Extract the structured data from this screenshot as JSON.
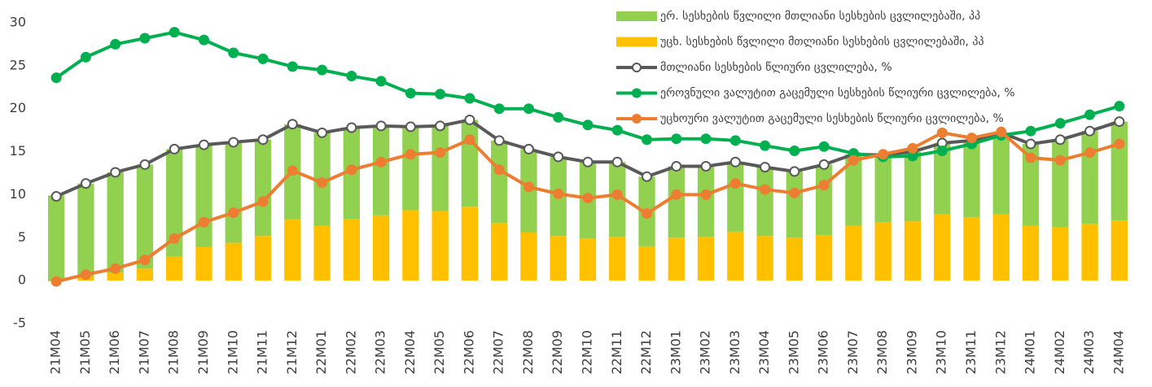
{
  "chart_data": {
    "type": "bar",
    "categories": [
      "21M04",
      "21M05",
      "21M06",
      "21M07",
      "21M08",
      "21M09",
      "21M10",
      "21M11",
      "21M12",
      "22M01",
      "22M02",
      "22M03",
      "22M04",
      "22M05",
      "22M06",
      "22M07",
      "22M08",
      "22M09",
      "22M10",
      "22M11",
      "22M12",
      "23M01",
      "23M02",
      "23M03",
      "23M04",
      "23M05",
      "23M06",
      "23M07",
      "23M08",
      "23M09",
      "23M10",
      "23M11",
      "23M12",
      "24M01",
      "24M02",
      "24M03",
      "24M04"
    ],
    "series": [
      {
        "name": "ერ. სესხების წვლილი მთლიანი სესხების ცვლილებაში, პპ",
        "type": "bar",
        "color": "#92d050",
        "values": [
          9.9,
          10.8,
          11.7,
          12.1,
          12.5,
          11.9,
          11.7,
          11.2,
          11.1,
          10.8,
          10.6,
          10.4,
          9.7,
          9.9,
          10.1,
          9.6,
          9.7,
          9.2,
          8.9,
          8.7,
          8.1,
          8.3,
          8.2,
          8.1,
          8.0,
          7.7,
          8.2,
          8.3,
          7.8,
          8.1,
          8.3,
          8.9,
          9.5,
          9.5,
          10.2,
          10.8,
          11.5
        ]
      },
      {
        "name": "უცხ. სესხების წვლილი მთლიანი სესხების ცვლილებაში, პპ",
        "type": "bar",
        "color": "#ffc000",
        "values": [
          -0.1,
          0.5,
          0.9,
          1.4,
          2.8,
          3.9,
          4.4,
          5.2,
          7.1,
          6.4,
          7.2,
          7.6,
          8.2,
          8.1,
          8.6,
          6.7,
          5.6,
          5.2,
          4.9,
          5.1,
          4.0,
          5.0,
          5.1,
          5.7,
          5.2,
          5.0,
          5.3,
          6.4,
          6.8,
          6.9,
          7.7,
          7.4,
          7.7,
          6.4,
          6.2,
          6.6,
          7.0
        ]
      },
      {
        "name": "მთლიანი სესხების წლიური ცვლილება, %",
        "type": "line",
        "color": "#595959",
        "marker_face": "#ffffff",
        "values": [
          9.8,
          11.3,
          12.6,
          13.5,
          15.3,
          15.8,
          16.1,
          16.4,
          18.2,
          17.2,
          17.8,
          18.0,
          17.9,
          18.0,
          18.7,
          16.3,
          15.3,
          14.4,
          13.8,
          13.8,
          12.1,
          13.3,
          13.3,
          13.8,
          13.2,
          12.7,
          13.5,
          14.7,
          14.6,
          15.0,
          16.0,
          16.3,
          17.2,
          15.9,
          16.4,
          17.4,
          18.5
        ]
      },
      {
        "name": "ეროვნული ვალუტით გაცემული სესხების წლიური ცვლილება, %",
        "type": "line",
        "color": "#00b050",
        "marker_face": "#00b050",
        "values": [
          23.6,
          26.0,
          27.5,
          28.2,
          28.9,
          28.0,
          26.5,
          25.8,
          24.9,
          24.5,
          23.8,
          23.2,
          21.8,
          21.7,
          21.2,
          20.0,
          20.0,
          19.0,
          18.1,
          17.5,
          16.4,
          16.5,
          16.5,
          16.3,
          15.7,
          15.1,
          15.6,
          14.8,
          14.4,
          14.5,
          15.1,
          15.9,
          16.9,
          17.4,
          18.3,
          19.3,
          20.3
        ]
      },
      {
        "name": "უცხოური ვალუტით გაცემული სესხების წლიური ცვლილება, %",
        "type": "line",
        "color": "#ed7d31",
        "marker_face": "#ed7d31",
        "values": [
          -0.1,
          0.7,
          1.4,
          2.4,
          4.9,
          6.8,
          7.9,
          9.2,
          12.8,
          11.4,
          12.9,
          13.8,
          14.7,
          14.9,
          16.4,
          12.9,
          10.9,
          10.1,
          9.6,
          10.0,
          7.8,
          10.0,
          10.0,
          11.3,
          10.6,
          10.2,
          11.1,
          14.0,
          14.7,
          15.4,
          17.2,
          16.6,
          17.3,
          14.3,
          14.0,
          14.9,
          15.9
        ]
      }
    ],
    "ylim": [
      -5,
      30
    ],
    "yticks": [
      -5,
      0,
      5,
      10,
      15,
      20,
      25,
      30
    ],
    "grid": false,
    "legend": "top-right"
  }
}
